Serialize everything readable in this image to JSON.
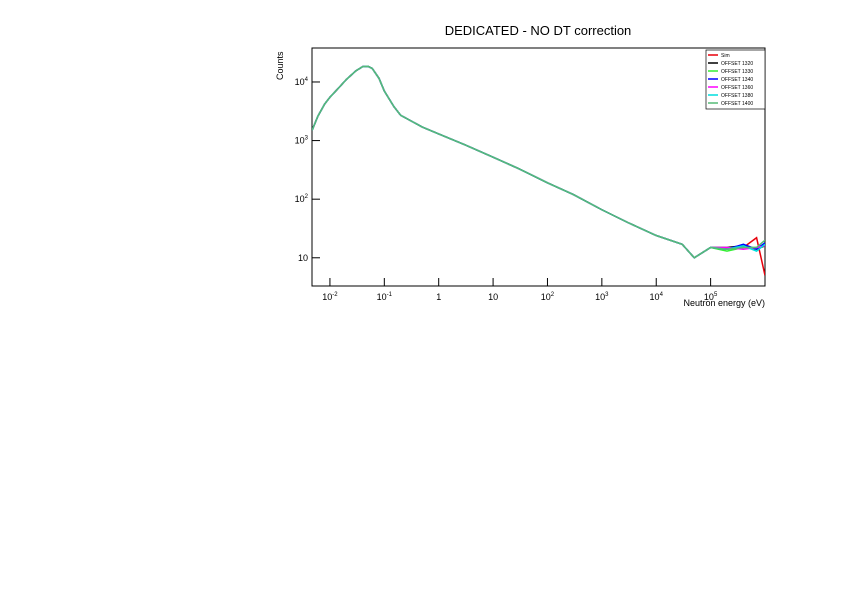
{
  "chart_data": {
    "type": "line",
    "title": "DEDICATED - NO DT correction",
    "x_label": "Neutron energy (eV)",
    "y_label": "Counts",
    "log_x": true,
    "log_y": true,
    "xlim": [
      0.00468,
      1000000
    ],
    "ylim": [
      3.3,
      38000
    ],
    "xticks": [
      {
        "value": 0.01,
        "label": "10",
        "exponent": "-2"
      },
      {
        "value": 0.1,
        "label": "10",
        "exponent": "-1"
      },
      1,
      10,
      {
        "value": 100,
        "label": "10",
        "exponent": "2"
      },
      {
        "value": 1000,
        "label": "10",
        "exponent": "3"
      },
      {
        "value": 10000,
        "label": "10",
        "exponent": "4"
      },
      {
        "value": 100000,
        "label": "10",
        "exponent": "5"
      }
    ],
    "yticks": [
      10,
      {
        "value": 100,
        "label": "10",
        "exponent": "2"
      },
      {
        "value": 1000,
        "label": "10",
        "exponent": "3"
      },
      {
        "value": 10000,
        "label": "10",
        "exponent": "4"
      }
    ],
    "legend": "top-right",
    "x": [
      0.0047,
      0.006,
      0.008,
      0.01,
      0.015,
      0.02,
      0.03,
      0.04,
      0.05,
      0.06,
      0.08,
      0.1,
      0.15,
      0.2,
      0.3,
      0.5,
      1,
      3,
      10,
      30,
      100,
      300,
      1000,
      3000,
      10000,
      30000,
      50000,
      100000,
      200000,
      400000,
      700000,
      1000000
    ],
    "series": [
      {
        "name": "Sim",
        "color": "#e8000b",
        "values": [
          1500,
          2600,
          4200,
          5500,
          8200,
          11000,
          15500,
          18300,
          18500,
          17000,
          11500,
          7000,
          3800,
          2700,
          2200,
          1700,
          1300,
          850,
          520,
          330,
          190,
          120,
          66,
          40,
          24,
          17,
          10,
          15,
          14,
          15,
          22,
          5
        ]
      },
      {
        "name": "OFFSET 1320",
        "color": "#000000",
        "values": [
          1500,
          2600,
          4200,
          5500,
          8200,
          11000,
          15500,
          18300,
          18500,
          17000,
          11500,
          7000,
          3800,
          2700,
          2200,
          1700,
          1300,
          850,
          520,
          330,
          190,
          120,
          66,
          40,
          24,
          17,
          10,
          15,
          15,
          16,
          14,
          16
        ]
      },
      {
        "name": "OFFSET 1330",
        "color": "#33ee33",
        "values": [
          1500,
          2600,
          4200,
          5500,
          8200,
          11000,
          15500,
          18300,
          18500,
          17000,
          11500,
          7000,
          3800,
          2700,
          2200,
          1700,
          1300,
          850,
          520,
          330,
          190,
          120,
          66,
          40,
          24,
          17,
          10,
          15,
          13,
          15,
          15,
          17
        ]
      },
      {
        "name": "OFFSET 1340",
        "color": "#0000ff",
        "values": [
          1500,
          2600,
          4200,
          5500,
          8200,
          11000,
          15500,
          18300,
          18500,
          17000,
          11500,
          7000,
          3800,
          2700,
          2200,
          1700,
          1300,
          850,
          520,
          330,
          190,
          120,
          66,
          40,
          24,
          17,
          10,
          15,
          14,
          17,
          14,
          18
        ]
      },
      {
        "name": "OFFSET 1360",
        "color": "#ff00ff",
        "values": [
          1500,
          2600,
          4200,
          5500,
          8200,
          11000,
          15500,
          18300,
          18500,
          17000,
          11500,
          7000,
          3800,
          2700,
          2200,
          1700,
          1300,
          850,
          520,
          330,
          190,
          120,
          66,
          40,
          24,
          17,
          10,
          15,
          15,
          14,
          15,
          16
        ]
      },
      {
        "name": "OFFSET 1380",
        "color": "#00dddd",
        "values": [
          1500,
          2600,
          4200,
          5500,
          8200,
          11000,
          15500,
          18300,
          18500,
          17000,
          11500,
          7000,
          3800,
          2700,
          2200,
          1700,
          1300,
          850,
          520,
          330,
          190,
          120,
          66,
          40,
          24,
          17,
          10,
          15,
          14,
          16,
          13,
          17
        ]
      },
      {
        "name": "OFFSET 1400",
        "color": "#55bb77",
        "values": [
          1500,
          2600,
          4200,
          5500,
          8200,
          11000,
          15500,
          18300,
          18500,
          17000,
          11500,
          7000,
          3800,
          2700,
          2200,
          1700,
          1300,
          850,
          520,
          330,
          190,
          120,
          66,
          40,
          24,
          17,
          10,
          15,
          14,
          15,
          15,
          20
        ]
      }
    ]
  }
}
